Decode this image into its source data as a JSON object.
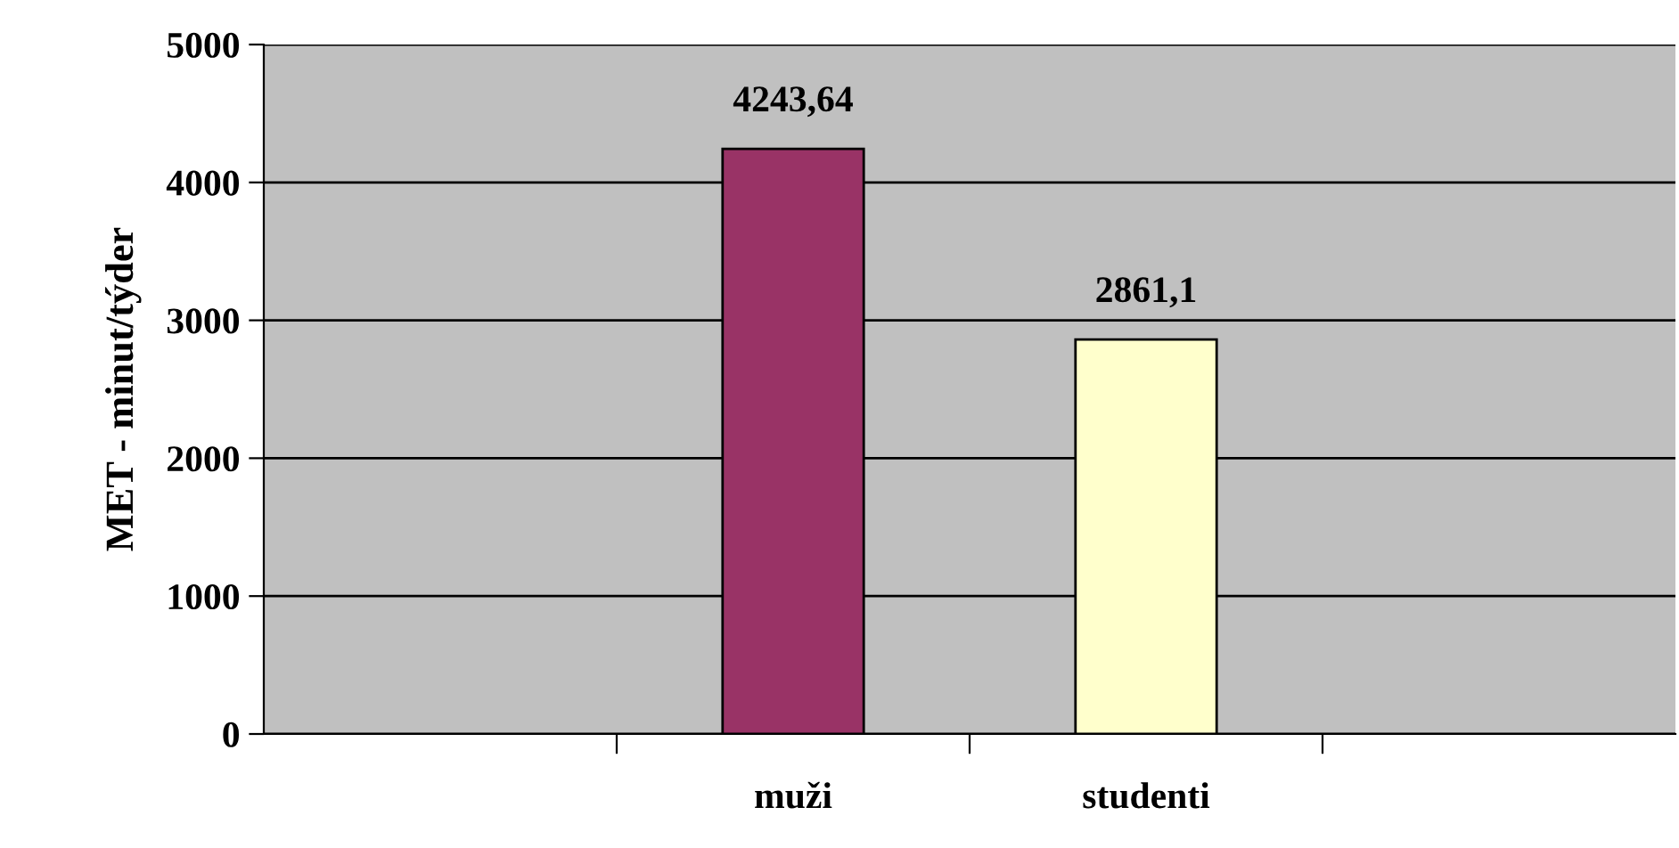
{
  "chart_data": {
    "type": "bar",
    "ylabel": "MET - minut/týder",
    "categories": [
      null,
      "muži",
      "studenti",
      null
    ],
    "values": [
      null,
      4243.64,
      2861.1,
      null
    ],
    "colors": [
      "#993366",
      "#993366",
      "#ffffcc",
      "#ffffcc"
    ],
    "value_labels": [
      null,
      "4243,64",
      "2861,1",
      null
    ],
    "ylim": [
      0,
      5000
    ],
    "yticks": [
      0,
      1000,
      2000,
      3000,
      4000,
      5000
    ],
    "grid": "y",
    "legend": false
  }
}
